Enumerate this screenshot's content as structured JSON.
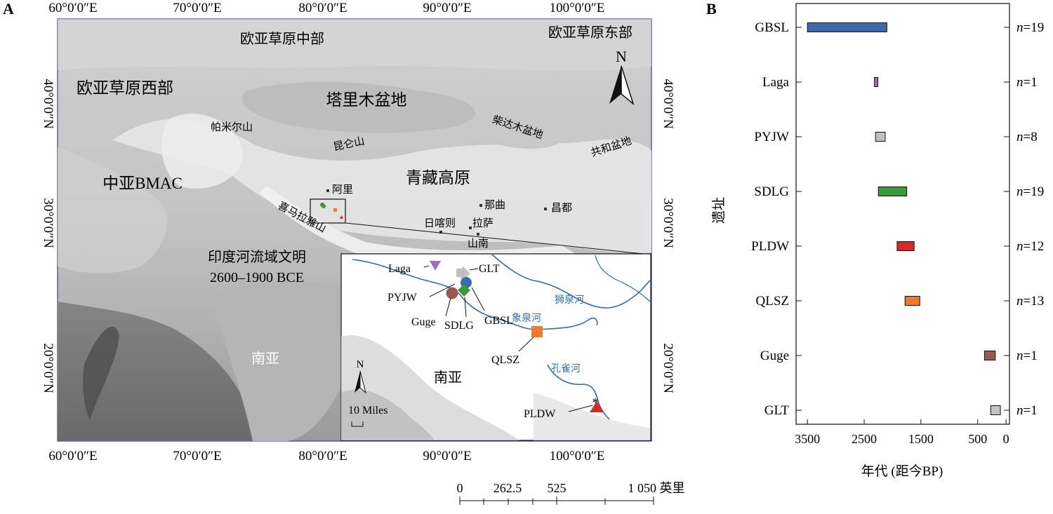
{
  "panel_a": {
    "letter": "A",
    "lon_labels": [
      "60°0′0″E",
      "70°0′0″E",
      "80°0′0″E",
      "90°0′0″E",
      "100°0′0″E"
    ],
    "lat_labels": [
      "40°0′0″N",
      "30°0′0″N",
      "20°0′0″N"
    ],
    "north": "N",
    "regions": {
      "steppe_central": "欧亚草原中部",
      "steppe_east": "欧亚草原东部",
      "steppe_west": "欧亚草原西部",
      "tarim": "塔里木盆地",
      "pamir": "帕米尔山",
      "kunlun": "昆仑山",
      "qaidam": "柴达木盆地",
      "gonghe": "共和盆地",
      "bmac": "中亚BMAC",
      "plateau": "青藏高原",
      "himalaya": "喜马拉雅山",
      "indus_line1": "印度河流域文明",
      "indus_line2": "2600–1900 BCE",
      "south_asia": "南亚"
    },
    "cities": {
      "ali": "阿里",
      "naqu": "那曲",
      "changdu": "昌都",
      "shigatse": "日喀则",
      "lhasa": "拉萨",
      "shannan": "山南"
    },
    "inset": {
      "sites": [
        "Laga",
        "GLT",
        "PYJW",
        "GBSL",
        "Guge",
        "SDLG",
        "QLSZ",
        "PLDW"
      ],
      "rivers": [
        "狮泉河",
        "象泉河",
        "孔雀河"
      ],
      "south_asia": "南亚",
      "north": "N",
      "scale": "10 Miles"
    },
    "scale_bar": {
      "ticks": [
        "0",
        "262.5",
        "525",
        "1 050 英里"
      ]
    }
  },
  "colors": {
    "GBSL": "#3d6aad",
    "Laga": "#9b6fc3",
    "PYJW": "#c0c0c0",
    "SDLG": "#3a9a3a",
    "PLDW": "#d42a2a",
    "QLSZ": "#f2782c",
    "Guge": "#9a5a52",
    "GLT": "#c4c4c4",
    "river": "#2e6db3"
  },
  "chart_data": {
    "type": "bar",
    "panel_letter": "B",
    "ylabel": "遗址",
    "xlabel": "年代 (距今BP)",
    "xlim": [
      3700,
      -60
    ],
    "xticks": [
      3500,
      2500,
      1500,
      500,
      0
    ],
    "xtick_labels": [
      "3500",
      "2500",
      "1500",
      "500",
      "0"
    ],
    "categories": [
      "GBSL",
      "Laga",
      "PYJW",
      "SDLG",
      "PLDW",
      "QLSZ",
      "Guge",
      "GLT"
    ],
    "ranges": [
      {
        "site": "GBSL",
        "start": 3500,
        "end": 2100,
        "n": "n=19"
      },
      {
        "site": "Laga",
        "start": 2320,
        "end": 2270,
        "n": "n=1"
      },
      {
        "site": "PYJW",
        "start": 2300,
        "end": 2130,
        "n": "n=8"
      },
      {
        "site": "SDLG",
        "start": 2250,
        "end": 1750,
        "n": "n=19"
      },
      {
        "site": "PLDW",
        "start": 1920,
        "end": 1620,
        "n": "n=12"
      },
      {
        "site": "QLSZ",
        "start": 1780,
        "end": 1520,
        "n": "n=13"
      },
      {
        "site": "Guge",
        "start": 380,
        "end": 190,
        "n": "n=1"
      },
      {
        "site": "GLT",
        "start": 270,
        "end": 100,
        "n": "n=1"
      }
    ]
  }
}
